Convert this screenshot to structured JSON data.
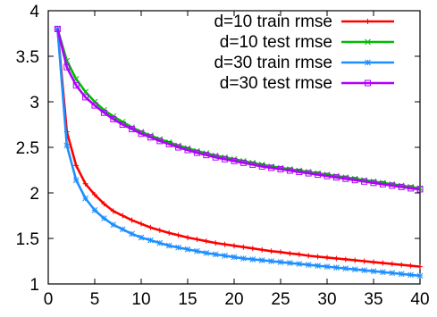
{
  "chart_data": {
    "type": "line",
    "title": "",
    "xlabel": "",
    "ylabel": "",
    "xlim": [
      0,
      40
    ],
    "ylim": [
      1,
      4
    ],
    "xticks": [
      0,
      5,
      10,
      15,
      20,
      25,
      30,
      35,
      40
    ],
    "yticks": [
      1,
      1.5,
      2,
      2.5,
      3,
      3.5,
      4
    ],
    "xtick_labels": [
      "0",
      "5",
      "10",
      "15",
      "20",
      "25",
      "30",
      "35",
      "40"
    ],
    "ytick_labels": [
      "1",
      "1.5",
      "2",
      "2.5",
      "3",
      "3.5",
      "4"
    ],
    "grid": false,
    "legend_position": "top-right",
    "x": [
      1,
      2,
      3,
      4,
      5,
      6,
      7,
      8,
      9,
      10,
      11,
      12,
      13,
      14,
      15,
      16,
      17,
      18,
      19,
      20,
      21,
      22,
      23,
      24,
      25,
      26,
      27,
      28,
      29,
      30,
      31,
      32,
      33,
      34,
      35,
      36,
      37,
      38,
      39,
      40
    ],
    "series": [
      {
        "name": "d=10 train rmse",
        "color": "#ff0000",
        "marker": "plus",
        "values": [
          3.8,
          2.67,
          2.3,
          2.1,
          1.98,
          1.88,
          1.8,
          1.75,
          1.7,
          1.66,
          1.62,
          1.59,
          1.56,
          1.535,
          1.51,
          1.49,
          1.47,
          1.45,
          1.435,
          1.42,
          1.405,
          1.39,
          1.375,
          1.36,
          1.35,
          1.335,
          1.325,
          1.31,
          1.3,
          1.29,
          1.28,
          1.27,
          1.26,
          1.25,
          1.24,
          1.23,
          1.22,
          1.21,
          1.2,
          1.19
        ]
      },
      {
        "name": "d=10 test rmse",
        "color": "#00bb00",
        "marker": "cross",
        "values": [
          3.8,
          3.45,
          3.25,
          3.11,
          3.0,
          2.91,
          2.84,
          2.78,
          2.72,
          2.67,
          2.63,
          2.59,
          2.555,
          2.52,
          2.49,
          2.46,
          2.435,
          2.41,
          2.39,
          2.37,
          2.35,
          2.33,
          2.31,
          2.29,
          2.275,
          2.26,
          2.245,
          2.23,
          2.215,
          2.2,
          2.185,
          2.17,
          2.155,
          2.14,
          2.125,
          2.11,
          2.095,
          2.08,
          2.065,
          2.05
        ]
      },
      {
        "name": "d=30 train rmse",
        "color": "#1e8fff",
        "marker": "star",
        "values": [
          3.8,
          2.52,
          2.14,
          1.94,
          1.81,
          1.72,
          1.65,
          1.6,
          1.55,
          1.51,
          1.48,
          1.45,
          1.42,
          1.4,
          1.38,
          1.36,
          1.34,
          1.325,
          1.31,
          1.295,
          1.28,
          1.27,
          1.26,
          1.25,
          1.24,
          1.23,
          1.22,
          1.21,
          1.2,
          1.19,
          1.18,
          1.17,
          1.16,
          1.15,
          1.14,
          1.13,
          1.12,
          1.11,
          1.1,
          1.09
        ]
      },
      {
        "name": "d=30 test rmse",
        "color": "#b000ff",
        "marker": "square",
        "values": [
          3.8,
          3.38,
          3.18,
          3.05,
          2.96,
          2.88,
          2.81,
          2.75,
          2.7,
          2.65,
          2.61,
          2.57,
          2.535,
          2.5,
          2.47,
          2.44,
          2.415,
          2.39,
          2.37,
          2.35,
          2.33,
          2.31,
          2.29,
          2.275,
          2.26,
          2.245,
          2.23,
          2.215,
          2.2,
          2.185,
          2.17,
          2.155,
          2.14,
          2.125,
          2.11,
          2.095,
          2.08,
          2.065,
          2.05,
          2.04
        ]
      }
    ]
  }
}
